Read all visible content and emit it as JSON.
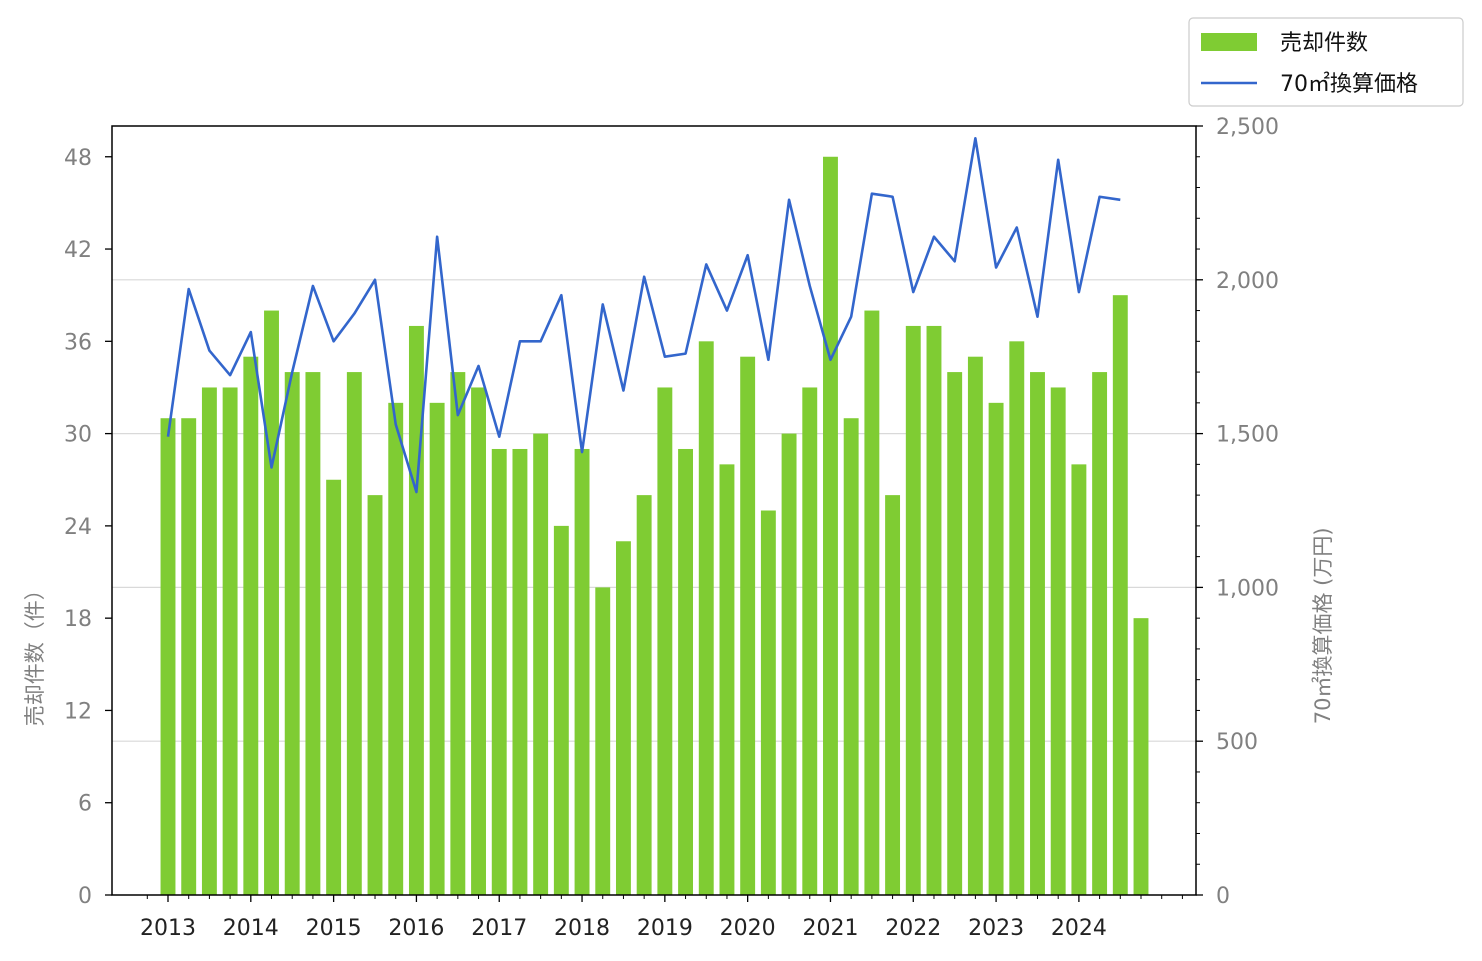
{
  "chart_data": {
    "type": "bar+line",
    "x_tick_labels": [
      "2013",
      "2014",
      "2015",
      "2016",
      "2017",
      "2018",
      "2019",
      "2020",
      "2021",
      "2022",
      "2023",
      "2024"
    ],
    "left_axis": {
      "label": "売却件数（件）",
      "range": [
        0,
        50
      ],
      "ticks": [
        "0",
        "6",
        "12",
        "18",
        "24",
        "30",
        "36",
        "42",
        "48"
      ],
      "color": "#808080"
    },
    "right_axis": {
      "label": "70㎡換算価格 (万円)",
      "range": [
        0,
        2500
      ],
      "ticks": [
        "0",
        "500",
        "1,000",
        "1,500",
        "2,000",
        "2,500"
      ],
      "color": "#808080"
    },
    "grid": "horizontal, right-axis ticks",
    "legend_position": "top-right (outside plot)",
    "series": [
      {
        "name": "売却件数",
        "kind": "bar",
        "axis": "left",
        "color": "#7FCC33",
        "values": [
          31,
          31,
          33,
          33,
          35,
          38,
          34,
          34,
          27,
          34,
          26,
          32,
          37,
          32,
          34,
          33,
          29,
          29,
          30,
          24,
          29,
          20,
          23,
          26,
          33,
          29,
          36,
          28,
          35,
          25,
          30,
          33,
          48,
          31,
          38,
          26,
          37,
          37,
          34,
          35,
          32,
          36,
          34,
          33,
          28,
          34,
          39,
          18
        ]
      },
      {
        "name": "70㎡換算価格",
        "kind": "line",
        "axis": "right",
        "color": "#3366CC",
        "values": [
          1490,
          1970,
          1770,
          1690,
          1830,
          1390,
          1700,
          1980,
          1800,
          1890,
          2000,
          1530,
          1310,
          2140,
          1560,
          1720,
          1490,
          1800,
          1800,
          1950,
          1440,
          1920,
          1640,
          2010,
          1750,
          1760,
          2050,
          1900,
          2080,
          1740,
          2260,
          1980,
          1740,
          1880,
          2280,
          2270,
          1960,
          2140,
          2060,
          2460,
          2040,
          2170,
          1880,
          2390,
          1960,
          2270,
          2260
        ]
      }
    ]
  }
}
